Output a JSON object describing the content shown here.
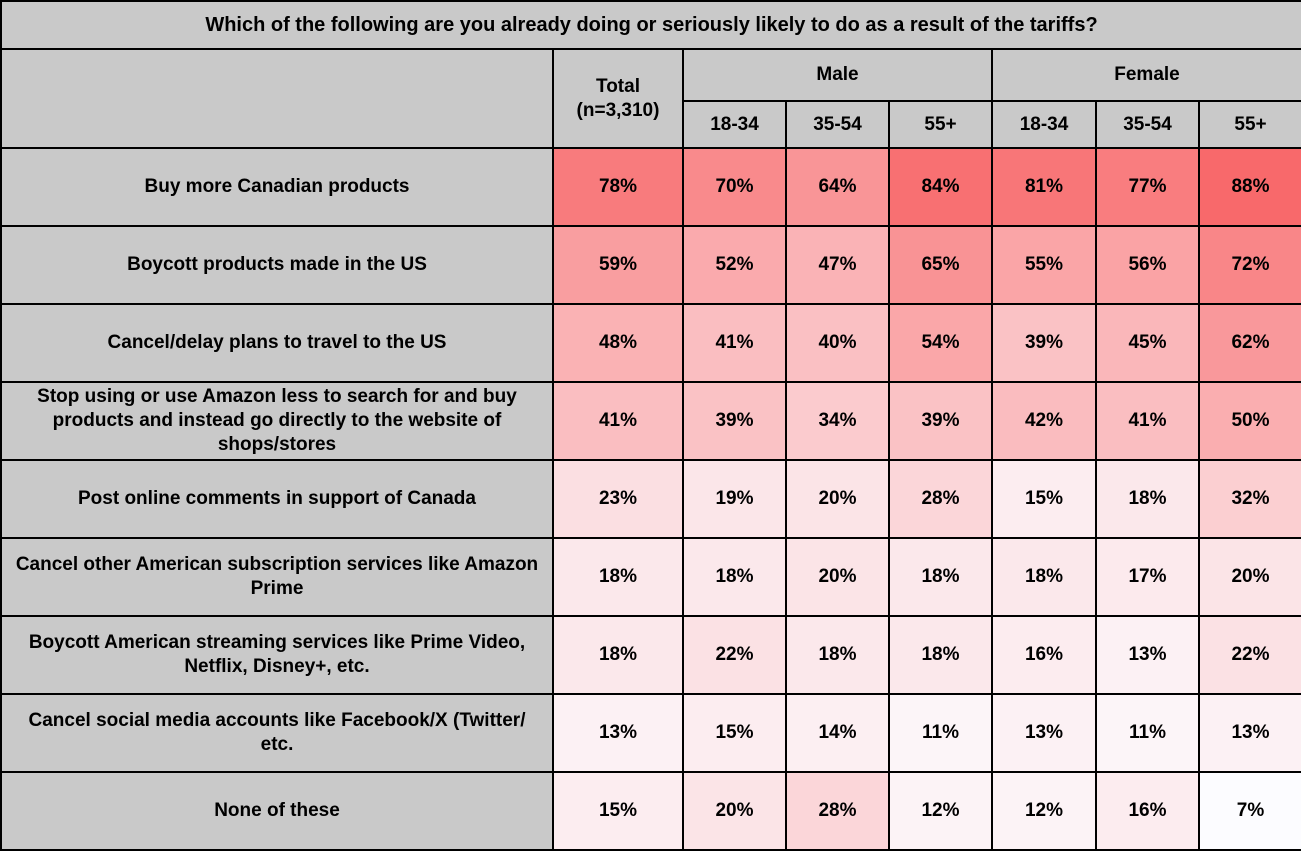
{
  "header": {
    "total_line1": "Total",
    "total_line2": "(n=3,310)",
    "male_label": "Male",
    "female_label": "Female",
    "age_labels": [
      "18-34",
      "35-54",
      "55+"
    ]
  },
  "chart_data": {
    "type": "heatmap",
    "title": "Which of the following are you already doing or seriously likely to do as a result of the tariffs?",
    "columns": [
      "Total (n=3,310)",
      "Male 18-34",
      "Male 35-54",
      "Male 55+",
      "Female 18-34",
      "Female 35-54",
      "Female 55+"
    ],
    "value_suffix": "%",
    "rows": [
      {
        "label": "Buy more Canadian products",
        "values": [
          78,
          70,
          64,
          84,
          81,
          77,
          88
        ]
      },
      {
        "label": "Boycott products made in the US",
        "values": [
          59,
          52,
          47,
          65,
          55,
          56,
          72
        ]
      },
      {
        "label": "Cancel/delay plans to travel to the US",
        "values": [
          48,
          41,
          40,
          54,
          39,
          45,
          62
        ]
      },
      {
        "label": "Stop using or use Amazon less to search for and buy products and instead go directly to the website of shops/stores",
        "values": [
          41,
          39,
          34,
          39,
          42,
          41,
          50
        ]
      },
      {
        "label": "Post online comments in support of Canada",
        "values": [
          23,
          19,
          20,
          28,
          15,
          18,
          32
        ]
      },
      {
        "label": "Cancel other American subscription services like Amazon Prime",
        "values": [
          18,
          18,
          20,
          18,
          18,
          17,
          20
        ]
      },
      {
        "label": "Boycott American streaming services like Prime Video, Netflix, Disney+, etc.",
        "values": [
          18,
          22,
          18,
          18,
          16,
          13,
          22
        ]
      },
      {
        "label": "Cancel social media accounts like Facebook/X (Twitter/ etc.",
        "values": [
          13,
          15,
          14,
          11,
          13,
          11,
          13
        ]
      },
      {
        "label": "None of these",
        "values": [
          15,
          20,
          28,
          12,
          12,
          16,
          7
        ]
      }
    ],
    "colors": {
      "header_bg": "#C9C9C9",
      "border": "#000000",
      "scale_min_color": "#FCFCFF",
      "scale_max_color": "#F8696B",
      "scale_min_value": 7,
      "scale_max_value": 88
    },
    "legend_position": "none",
    "grid": true
  }
}
